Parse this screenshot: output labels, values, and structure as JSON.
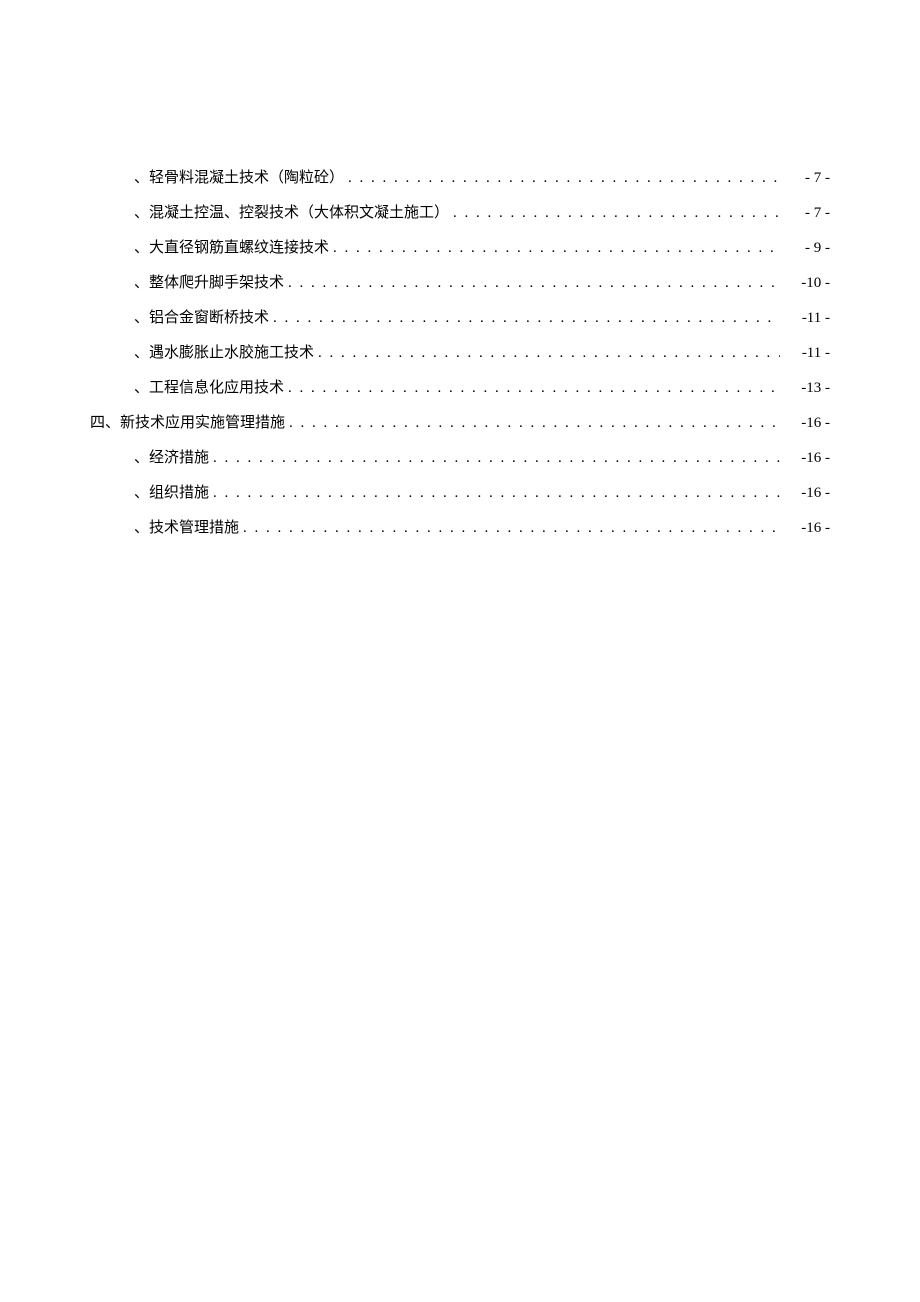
{
  "toc": {
    "text_color": "#000000",
    "background_color": "#ffffff",
    "font_size": 15,
    "entries": [
      {
        "type": "sub",
        "prefix": "、",
        "title": "轻骨料混凝土技术（陶粒砼）",
        "page": "- 7 -"
      },
      {
        "type": "sub",
        "prefix": "、",
        "title": "混凝土控温、控裂技术（大体积文凝土施工）",
        "page": "- 7 -"
      },
      {
        "type": "sub",
        "prefix": "、",
        "title": "大直径钢筋直螺纹连接技术",
        "page": "- 9 -"
      },
      {
        "type": "sub",
        "prefix": "、",
        "title": "整体爬升脚手架技术",
        "page": "-10 -"
      },
      {
        "type": "sub",
        "prefix": "、",
        "title": "铝合金窗断桥技术",
        "page": "-11 -"
      },
      {
        "type": "sub",
        "prefix": "、",
        "title": "遇水膨胀止水胶施工技术",
        "page": "-11 -"
      },
      {
        "type": "sub",
        "prefix": "、",
        "title": "工程信息化应用技术",
        "page": "-13 -"
      },
      {
        "type": "main",
        "prefix": "四、",
        "title": "新技术应用实施管理措施",
        "page": "-16 -"
      },
      {
        "type": "sub",
        "prefix": "、",
        "title": "经济措施",
        "page": "-16 -"
      },
      {
        "type": "sub",
        "prefix": "、",
        "title": "组织措施",
        "page": "-16 -"
      },
      {
        "type": "sub",
        "prefix": "、",
        "title": "技术管理措施",
        "page": "-16 -"
      }
    ],
    "dots": ". . . . . . . . . . . . . . . . . . . . . . . . . . . . . . . . . . . . . . . . . . . . . . . . . . . . . . . . . . . . . . . . . . . . . . . . . . . . . . . . . . . . . . . . . . . . . . . . . . . ."
  }
}
